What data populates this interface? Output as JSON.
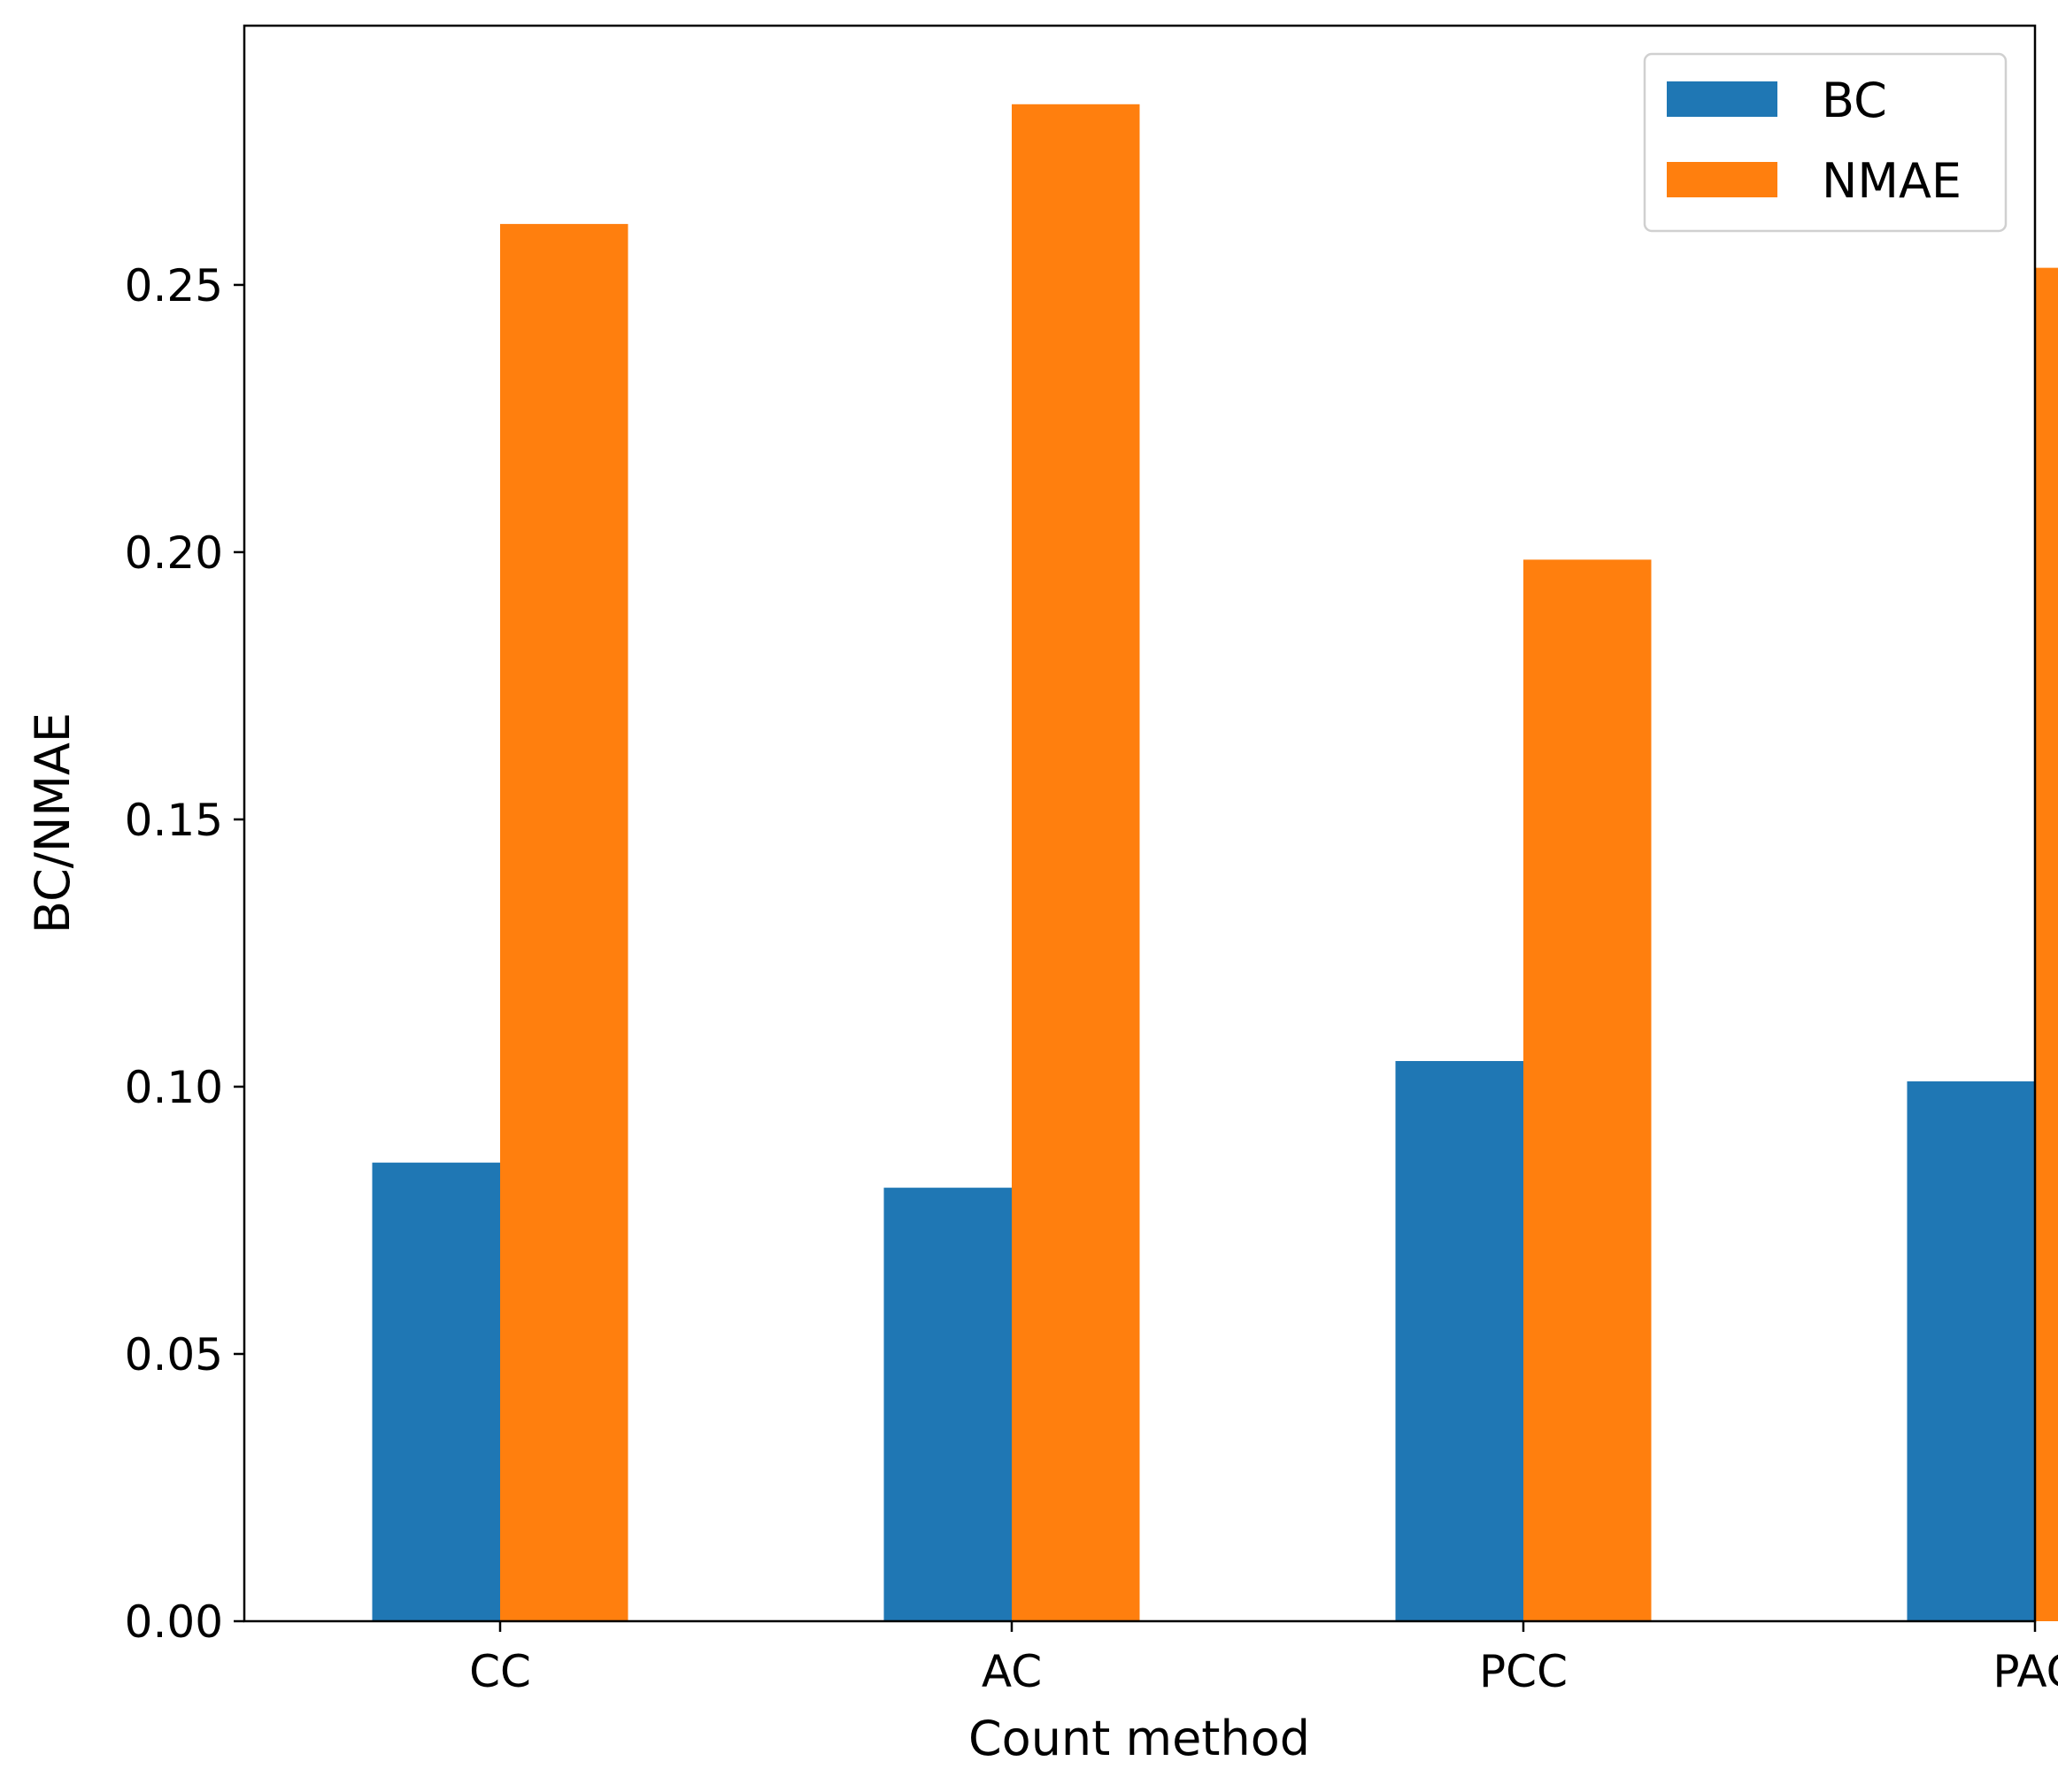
{
  "chart_data": {
    "type": "bar",
    "title": "",
    "xlabel": "Count method",
    "ylabel": "BC/NMAE",
    "categories": [
      "CC",
      "AC",
      "PCC",
      "PAC"
    ],
    "series": [
      {
        "name": "BC",
        "color": "#1f77b4",
        "values": [
          0.0858,
          0.0811,
          0.1048,
          0.101
        ]
      },
      {
        "name": "NMAE",
        "color": "#ff7f0e",
        "values": [
          0.2614,
          0.2838,
          0.1986,
          0.2532
        ]
      }
    ],
    "ylim": [
      0,
      0.2985
    ],
    "yticks": [
      0.0,
      0.05,
      0.1,
      0.15,
      0.2,
      0.25
    ],
    "ytick_labels": [
      "0.00",
      "0.05",
      "0.10",
      "0.15",
      "0.20",
      "0.25"
    ],
    "grid": false,
    "legend_position": "top-right"
  }
}
